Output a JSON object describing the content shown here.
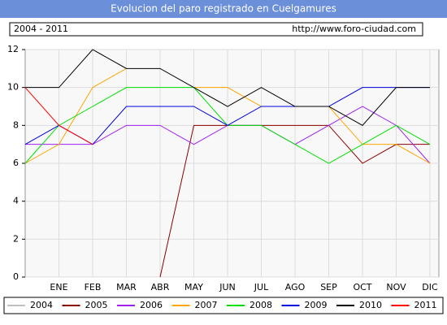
{
  "chart_data": {
    "type": "line",
    "title": "Evolucion del paro registrado en Cuelgamures",
    "subtitle": "2004 - 2011",
    "source": "http://www.foro-ciudad.com",
    "categories": [
      null,
      "ENE",
      "FEB",
      "MAR",
      "ABR",
      "MAY",
      "JUN",
      "JUL",
      "AGO",
      "SEP",
      "OCT",
      "NOV",
      "DIC"
    ],
    "ylim": [
      0,
      12
    ],
    "yticks": [
      0,
      2,
      4,
      6,
      8,
      10,
      12
    ],
    "grid": true,
    "series": [
      {
        "name": "2004",
        "color": "#c0c0c0",
        "values": [
          null,
          null,
          null,
          null,
          null,
          null,
          null,
          null,
          null,
          null,
          null,
          null,
          null
        ]
      },
      {
        "name": "2005",
        "color": "#8b0000",
        "values": [
          null,
          null,
          null,
          null,
          0,
          8,
          8,
          8,
          8,
          8,
          6,
          7,
          7
        ]
      },
      {
        "name": "2006",
        "color": "#a020f0",
        "values": [
          7,
          7,
          7,
          8,
          8,
          7,
          8,
          8,
          7,
          8,
          9,
          8,
          6
        ]
      },
      {
        "name": "2007",
        "color": "#ffa500",
        "values": [
          6,
          7,
          10,
          11,
          null,
          10,
          10,
          9,
          9,
          9,
          7,
          7,
          6
        ]
      },
      {
        "name": "2008",
        "color": "#00e000",
        "values": [
          6,
          8,
          9,
          10,
          10,
          10,
          8,
          8,
          7,
          6,
          7,
          8,
          7
        ]
      },
      {
        "name": "2009",
        "color": "#0000e0",
        "values": [
          7,
          8,
          7,
          9,
          9,
          9,
          8,
          9,
          9,
          9,
          10,
          10,
          10
        ]
      },
      {
        "name": "2010",
        "color": "#000000",
        "values": [
          10,
          10,
          12,
          11,
          11,
          10,
          9,
          10,
          9,
          9,
          8,
          10,
          10
        ]
      },
      {
        "name": "2011",
        "color": "#ff0000",
        "values": [
          10,
          8,
          7,
          null,
          null,
          null,
          null,
          null,
          null,
          null,
          null,
          null,
          null
        ]
      }
    ]
  }
}
